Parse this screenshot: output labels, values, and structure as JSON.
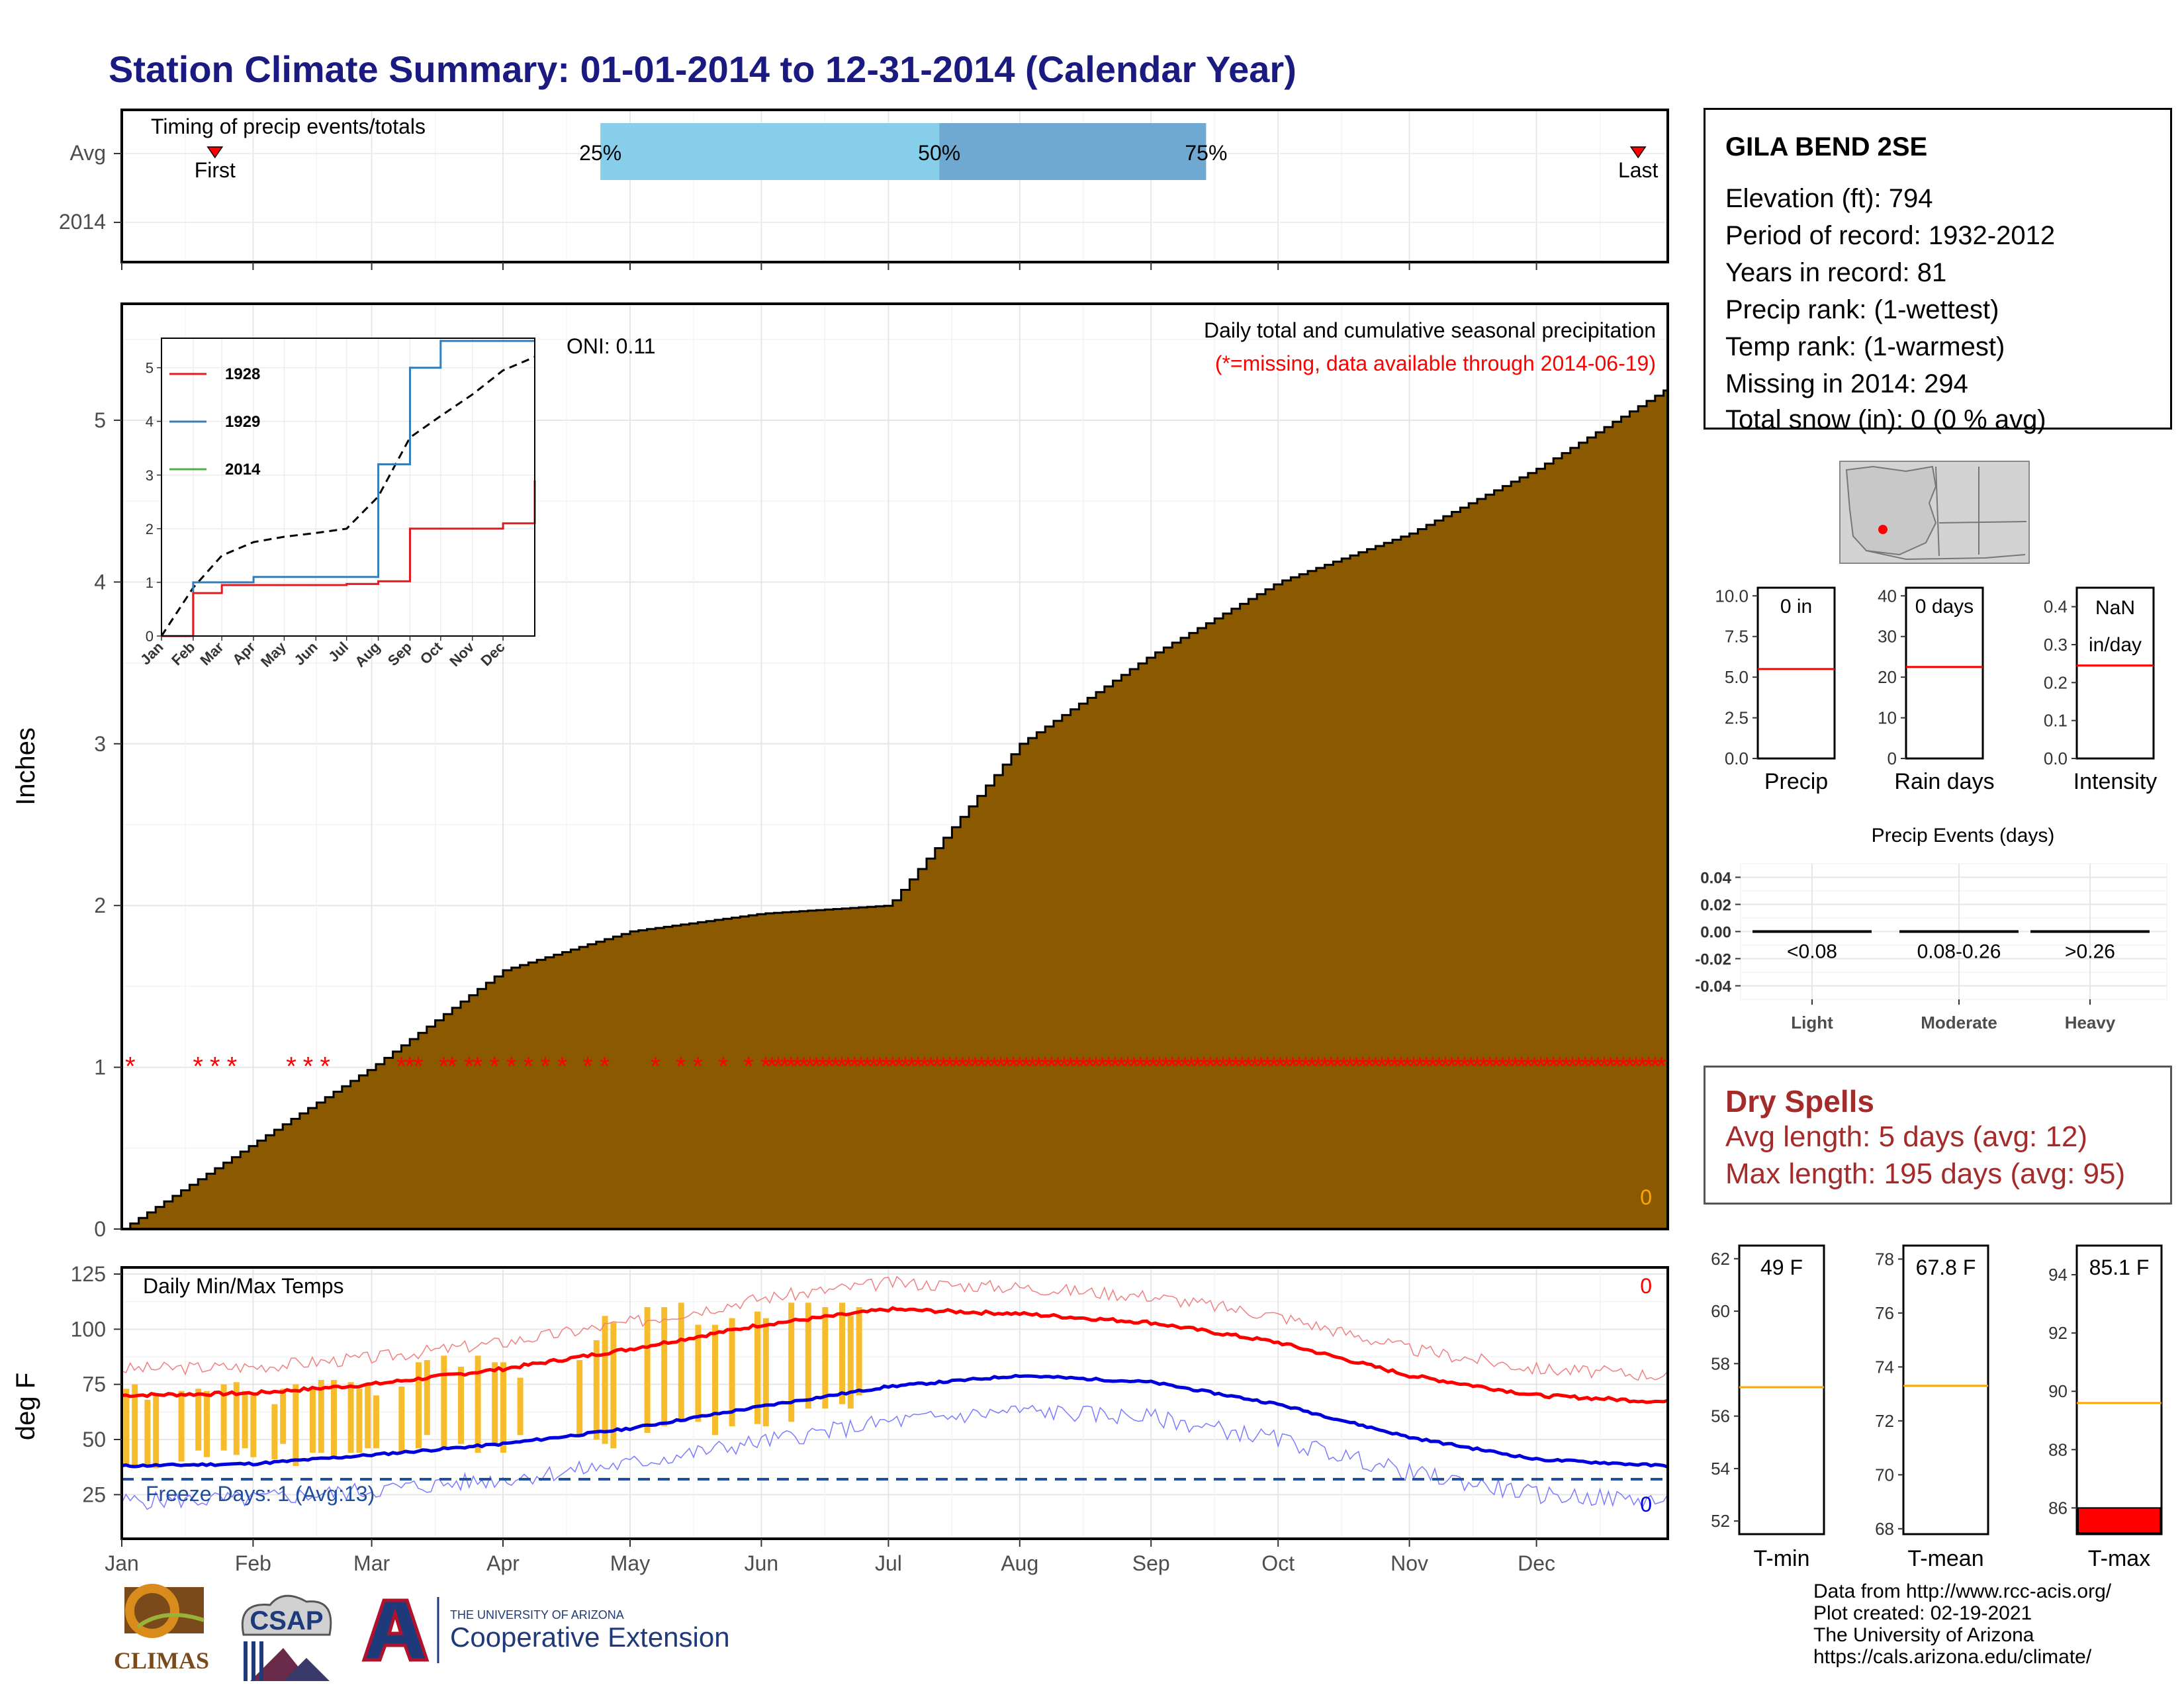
{
  "title": "Station Climate Summary: 01-01-2014 to 12-31-2014 (Calendar Year)",
  "months": [
    "Jan",
    "Feb",
    "Mar",
    "Apr",
    "May",
    "Jun",
    "Jul",
    "Aug",
    "Sep",
    "Oct",
    "Nov",
    "Dec"
  ],
  "timing": {
    "title": "Timing of precip events/totals",
    "rows": [
      "Avg",
      "2014"
    ],
    "first_label": "First",
    "last_label": "Last",
    "first_doy": 22,
    "last_doy": 358,
    "p25_doy": 113,
    "p50_doy": 193,
    "p75_doy": 256,
    "p25_label": "25%",
    "p50_label": "50%",
    "p75_label": "75%",
    "colors": {
      "q1": "#87ceeb",
      "q2": "#6fa8d0",
      "marker": "#ff0000"
    }
  },
  "precip_panel": {
    "ylabel": "Inches",
    "note1": "Daily total and cumulative seasonal precipitation",
    "note2": "(*=missing, data available through 2014-06-19)",
    "oni": "ONI: 0.11",
    "corner_value": "0",
    "fill_color": "#8b5a00",
    "missing_color": "#ff0000",
    "y_ticks": [
      "0",
      "1",
      "2",
      "3",
      "4",
      "5"
    ]
  },
  "inset": {
    "legend": [
      "1928",
      "1929",
      "2014"
    ],
    "legend_colors": [
      "#e41a1c",
      "#377eb8",
      "#4daf4a"
    ],
    "y_ticks": [
      "0",
      "1",
      "2",
      "3",
      "4",
      "5"
    ],
    "x_ticks": [
      "Jan",
      "Feb",
      "Mar",
      "Apr",
      "May",
      "Jun",
      "Jul",
      "Aug",
      "Sep",
      "Oct",
      "Nov",
      "Dec"
    ]
  },
  "summary_bars": [
    {
      "label": "Precip",
      "value": "0 in",
      "ticks": [
        "0.0",
        "2.5",
        "5.0",
        "7.5",
        "10.0"
      ],
      "ymax": 10.5,
      "avg": 5.5
    },
    {
      "label": "Rain days",
      "value": "0 days",
      "ticks": [
        "0",
        "10",
        "20",
        "30",
        "40"
      ],
      "ymax": 42,
      "avg": 22.5
    },
    {
      "label": "Intensity",
      "value": "NaN",
      "value2": "in/day",
      "ticks": [
        "0.0",
        "0.1",
        "0.2",
        "0.3",
        "0.4"
      ],
      "ymax": 0.45,
      "avg": 0.245
    }
  ],
  "events": {
    "title": "Precip Events (days)",
    "categories": [
      "Light",
      "Moderate",
      "Heavy"
    ],
    "ranges": [
      "<0.08",
      "0.08-0.26",
      ">0.26"
    ],
    "values": [
      0,
      0,
      0
    ],
    "y_ticks": [
      "0.04",
      "0.02",
      "0.00",
      "-0.02",
      "-0.04"
    ]
  },
  "station": {
    "name": "GILA BEND 2SE",
    "elevation": "Elevation (ft): 794",
    "period": "Period of record: 1932-2012",
    "years": "Years in record: 81",
    "precip_rank": "Precip rank:  (1-wettest)",
    "temp_rank": "Temp rank:  (1-warmest)",
    "missing": "Missing in 2014: 294",
    "snow": "Total snow (in): 0 (0 % avg)"
  },
  "dry_spells": {
    "title": "Dry Spells",
    "avg": "Avg length: 5 days (avg: 12)",
    "max": "Max length: 195 days (avg: 95)"
  },
  "temp_panel": {
    "ylabel": "deg F",
    "title": "Daily Min/Max Temps",
    "freeze": "Freeze Days: 1 (Avg:13)",
    "corner_red": "0",
    "corner_blue": "0",
    "y_ticks": [
      "25",
      "50",
      "75",
      "100",
      "125"
    ],
    "freeze_line": 32
  },
  "temp_summary": [
    {
      "label": "T-min",
      "value": "49 F",
      "ticks": [
        "52",
        "54",
        "56",
        "58",
        "60",
        "62"
      ],
      "ymin": 51.5,
      "ymax": 62.5,
      "avg": 57.1,
      "obs": null
    },
    {
      "label": "T-mean",
      "value": "67.8 F",
      "ticks": [
        "68",
        "70",
        "72",
        "74",
        "76",
        "78"
      ],
      "ymin": 67.8,
      "ymax": 78.5,
      "avg": 73.3,
      "obs": null
    },
    {
      "label": "T-max",
      "value": "85.1 F",
      "ticks": [
        "86",
        "88",
        "90",
        "92",
        "94"
      ],
      "ymin": 85.1,
      "ymax": 95,
      "avg": 89.6,
      "obs": 86
    }
  ],
  "chart_data": [
    {
      "type": "area",
      "title": "Daily total and cumulative seasonal precipitation",
      "ylabel": "Inches",
      "x": [
        "Jan",
        "Feb",
        "Mar",
        "Apr",
        "May",
        "Jun",
        "Jul",
        "Aug",
        "Sep",
        "Oct",
        "Nov",
        "Dec",
        "Dec-31"
      ],
      "series": [
        {
          "values": [
            0,
            0.53,
            1.0,
            1.6,
            1.84,
            1.95,
            2.0,
            3.0,
            3.55,
            4.0,
            4.3,
            4.7,
            5.2
          ]
        }
      ],
      "ylim": [
        0,
        5.7
      ]
    },
    {
      "type": "line",
      "title": "Daily Min/Max Temps",
      "ylabel": "deg F",
      "x": [
        "Jan",
        "Feb",
        "Mar",
        "Apr",
        "May",
        "Jun",
        "Jul",
        "Aug",
        "Sep",
        "Oct",
        "Nov",
        "Dec",
        "Dec-31"
      ],
      "series": [
        {
          "values": [
            70,
            71,
            75,
            82,
            91,
            102,
            109,
            107,
            103,
            94,
            79,
            70,
            67
          ]
        },
        {
          "values": [
            38,
            39,
            43,
            48,
            55,
            65,
            74,
            79,
            76,
            66,
            51,
            41,
            38
          ]
        }
      ],
      "ylim": [
        5,
        128
      ]
    },
    {
      "type": "line",
      "x": [
        "Jan",
        "Feb",
        "Mar",
        "Apr",
        "May",
        "Jun",
        "Jul",
        "Aug",
        "Sep",
        "Oct",
        "Nov",
        "Dec",
        "Dec-31"
      ],
      "series": [
        {
          "name": "1928",
          "values": [
            0,
            0.8,
            0.95,
            0.95,
            0.95,
            0.95,
            0.97,
            1.02,
            2.0,
            2.0,
            2.0,
            2.1,
            2.9
          ]
        },
        {
          "name": "1929",
          "values": [
            0,
            1.0,
            1.0,
            1.1,
            1.1,
            1.1,
            1.1,
            3.2,
            5.0,
            5.5,
            5.5,
            5.5,
            5.5
          ]
        }
      ],
      "ylim": [
        0,
        5.5
      ]
    }
  ]
}
